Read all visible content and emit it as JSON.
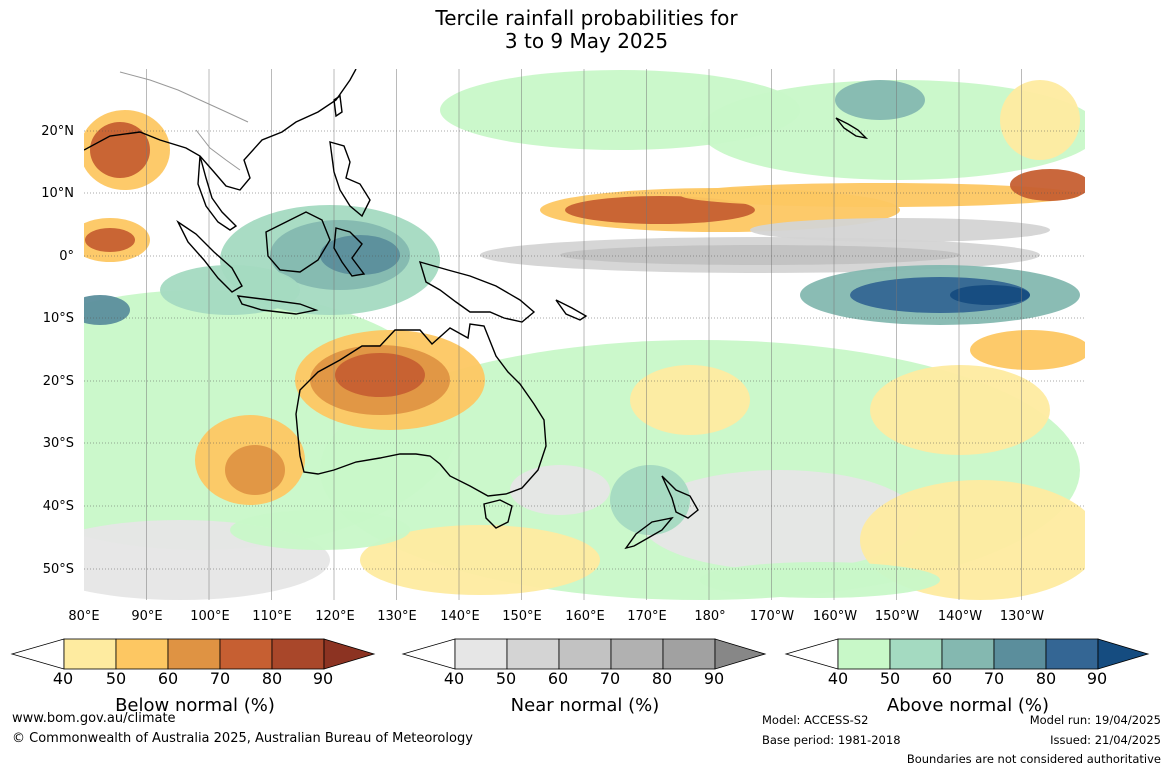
{
  "title": {
    "line1": "Tercile rainfall probabilities for",
    "line2": "3 to 9 May 2025"
  },
  "map": {
    "lat_labels": [
      "20°N",
      "10°N",
      "0°",
      "10°S",
      "20°S",
      "30°S",
      "40°S",
      "50°S"
    ],
    "lon_labels": [
      "80°E",
      "90°E",
      "100°E",
      "110°E",
      "120°E",
      "130°E",
      "140°E",
      "150°E",
      "160°E",
      "170°E",
      "180°",
      "170°W",
      "160°W",
      "150°W",
      "140°W",
      "130°W"
    ]
  },
  "colorbars": [
    {
      "name": "below",
      "title": "Below normal (%)",
      "ticks": [
        "40",
        "50",
        "60",
        "70",
        "80",
        "90"
      ],
      "colors": [
        "#ffffff",
        "#feeba0",
        "#fdc762",
        "#df9343",
        "#c65f32",
        "#a9472a",
        "#8c3322"
      ]
    },
    {
      "name": "near",
      "title": "Near normal (%)",
      "ticks": [
        "40",
        "50",
        "60",
        "70",
        "80",
        "90"
      ],
      "colors": [
        "#ffffff",
        "#e6e6e6",
        "#d4d4d4",
        "#c2c2c2",
        "#b1b1b1",
        "#a1a1a1",
        "#878787"
      ]
    },
    {
      "name": "above",
      "title": "Above normal (%)",
      "ticks": [
        "40",
        "50",
        "60",
        "70",
        "80",
        "90"
      ],
      "colors": [
        "#ffffff",
        "#c8f8c8",
        "#a4dac1",
        "#84b8b0",
        "#5b8e9c",
        "#346694",
        "#154c80"
      ]
    }
  ],
  "footer": {
    "website": "www.bom.gov.au/climate",
    "copyright": "© Commonwealth of Australia 2025, Australian Bureau of Meteorology",
    "model": "Model: ACCESS-S2",
    "base_period": "Base period: 1981-2018",
    "model_run": "Model run: 19/04/2025",
    "issued": "Issued: 21/04/2025",
    "disclaimer": "Boundaries are not considered authoritative"
  }
}
